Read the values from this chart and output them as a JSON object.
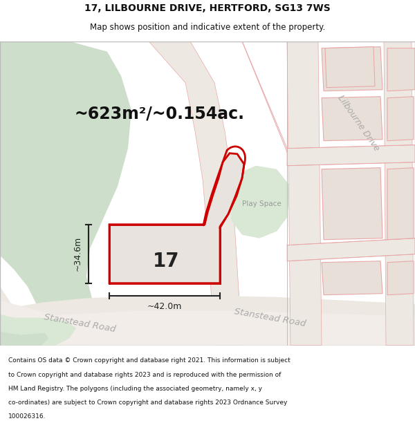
{
  "title": "17, LILBOURNE DRIVE, HERTFORD, SG13 7WS",
  "subtitle": "Map shows position and indicative extent of the property.",
  "area_text": "~623m²/~0.154ac.",
  "height_label": "~34.6m",
  "width_label": "~42.0m",
  "property_number": "17",
  "play_space_label": "Play Space",
  "stanstead_road_label": "Stanstead Road",
  "lilbourne_drive_label": "Lilbourne Drive",
  "footer_lines": [
    "Contains OS data © Crown copyright and database right 2021. This information is subject",
    "to Crown copyright and database rights 2023 and is reproduced with the permission of",
    "HM Land Registry. The polygons (including the associated geometry, namely x, y",
    "co-ordinates) are subject to Crown copyright and database rights 2023 Ordnance Survey",
    "100026316."
  ],
  "bg_color": "#ffffff",
  "map_bg": "#f2ede8",
  "green_color": "#cddeca",
  "green_color2": "#d8e8d4",
  "road_fill": "#e8e2da",
  "road_fill2": "#ede8e2",
  "plot_red": "#cc0000",
  "plot_fill": "#e8e3de",
  "building_fill": "#e8e0d8",
  "building_edge": "#e8a8a8",
  "road_line": "#e8a8a8",
  "road_text": "#aaaaaa",
  "fig_width": 6.0,
  "fig_height": 6.25,
  "title_fontsize": 10,
  "subtitle_fontsize": 8.5
}
